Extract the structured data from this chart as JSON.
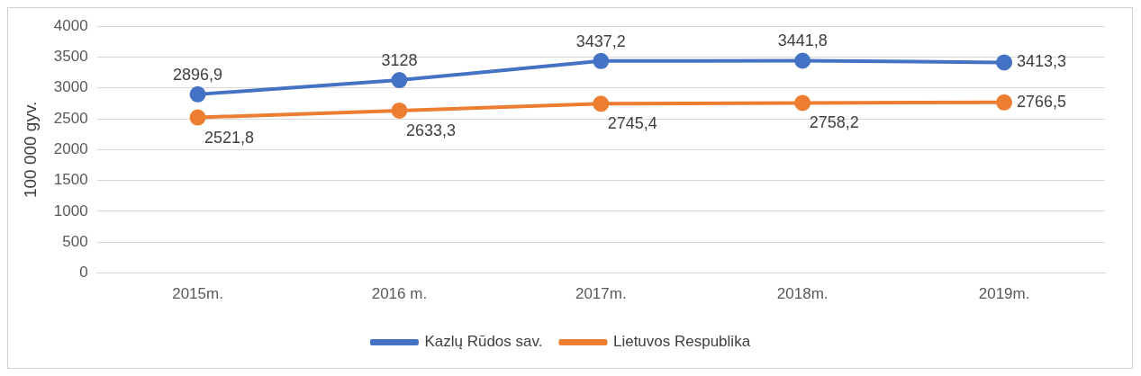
{
  "chart_data": {
    "type": "line",
    "ylabel": "100 000 gyv.",
    "categories": [
      "2015m.",
      "2016 m.",
      "2017m.",
      "2018m.",
      "2019m."
    ],
    "series": [
      {
        "name": "Kazlų Rūdos sav.",
        "color": "#4472c4",
        "values": [
          2896.9,
          3128,
          3437.2,
          3441.8,
          3413.3
        ],
        "value_labels": [
          "2896,9",
          "3128",
          "3437,2",
          "3441,8",
          "3413,3"
        ]
      },
      {
        "name": "Lietuvos Respublika",
        "color": "#ed7d31",
        "values": [
          2521.8,
          2633.3,
          2745.4,
          2758.2,
          2766.5
        ],
        "value_labels": [
          "2521,8",
          "2633,3",
          "2745,4",
          "2758,2",
          "2766,5"
        ]
      }
    ],
    "ylim": [
      0,
      4000
    ],
    "yticks": [
      0,
      500,
      1000,
      1500,
      2000,
      2500,
      3000,
      3500,
      4000
    ],
    "grid": "y",
    "legend": "bottom",
    "marker": "circle",
    "line_style": "solid"
  }
}
